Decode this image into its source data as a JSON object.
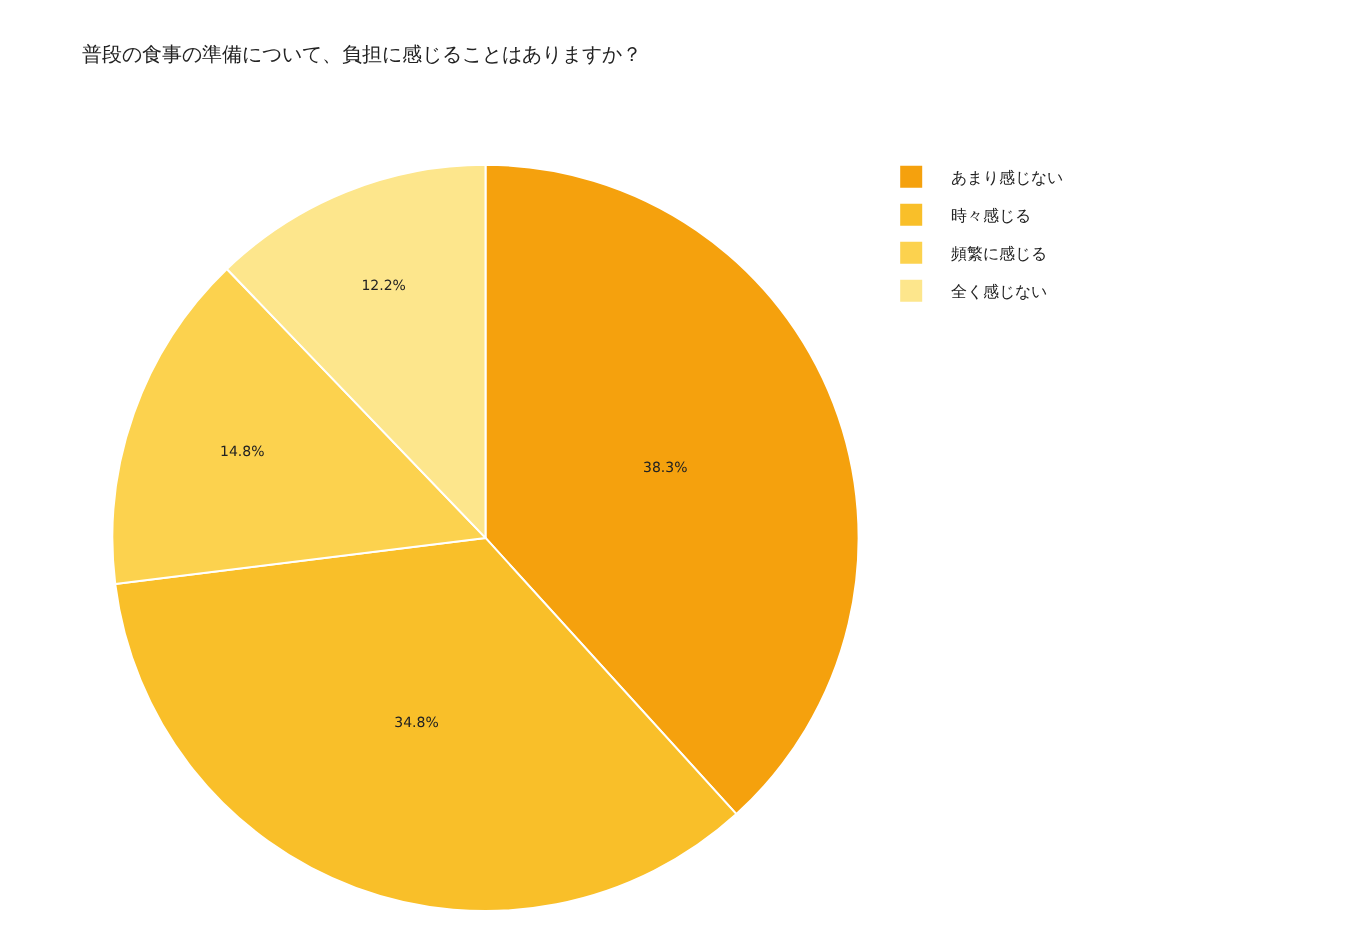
{
  "chart_data": {
    "type": "pie",
    "title": "普段の食事の準備について、負担に感じることはありますか？",
    "categories": [
      "あまり感じない",
      "時々感じる",
      "頻繁に感じる",
      "全く感じない"
    ],
    "values": [
      38.3,
      34.8,
      14.8,
      12.2
    ],
    "colors": [
      "#f5a10d",
      "#f9bf29",
      "#fcd24e",
      "#fde68c"
    ],
    "value_labels": [
      "38.3%",
      "34.8%",
      "14.8%",
      "12.2%"
    ],
    "legend": "top right"
  }
}
